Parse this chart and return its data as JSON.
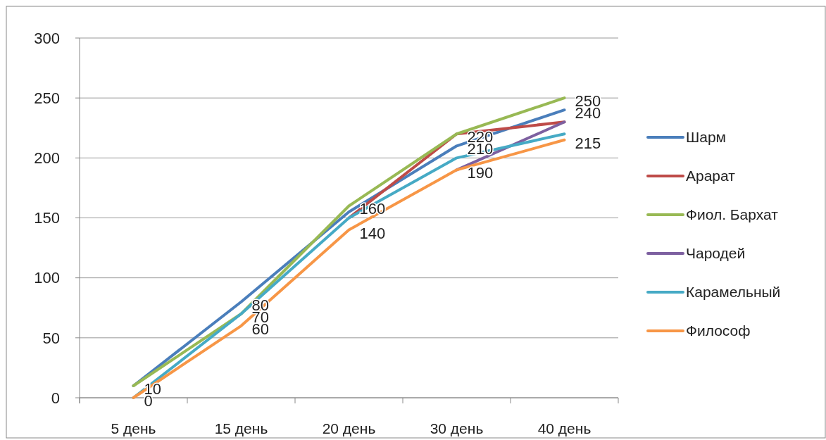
{
  "chart_data": {
    "type": "line",
    "categories": [
      "5 день",
      "15 день",
      "20 день",
      "30 день",
      "40 день"
    ],
    "ylim": [
      0,
      300
    ],
    "yticks": [
      0,
      50,
      100,
      150,
      200,
      250,
      300
    ],
    "grid": "y",
    "legend": "right",
    "marker": "none",
    "line_style": "solid",
    "series": [
      {
        "name": "Шарм",
        "color": "#4a7ebb",
        "values": [
          10,
          80,
          155,
          210,
          240
        ],
        "value_labels": [
          null,
          "80",
          null,
          "210",
          "240"
        ]
      },
      {
        "name": "Арарат",
        "color": "#be4b48",
        "values": [
          null,
          null,
          150,
          220,
          230
        ]
      },
      {
        "name": "Фиол. Бархат",
        "color": "#98b954",
        "values": [
          10,
          70,
          160,
          220,
          250
        ],
        "value_labels": [
          "10",
          "70",
          "160",
          "220",
          "250"
        ]
      },
      {
        "name": "Чародей",
        "color": "#7d60a0",
        "values": [
          null,
          null,
          null,
          190,
          230
        ]
      },
      {
        "name": "Карамельный",
        "color": "#46aac5",
        "values": [
          0,
          70,
          150,
          200,
          220
        ]
      },
      {
        "name": "Философ",
        "color": "#f79646",
        "values": [
          0,
          60,
          140,
          190,
          215
        ],
        "value_labels": [
          "0",
          "60",
          "140",
          "190",
          "215"
        ]
      }
    ]
  }
}
